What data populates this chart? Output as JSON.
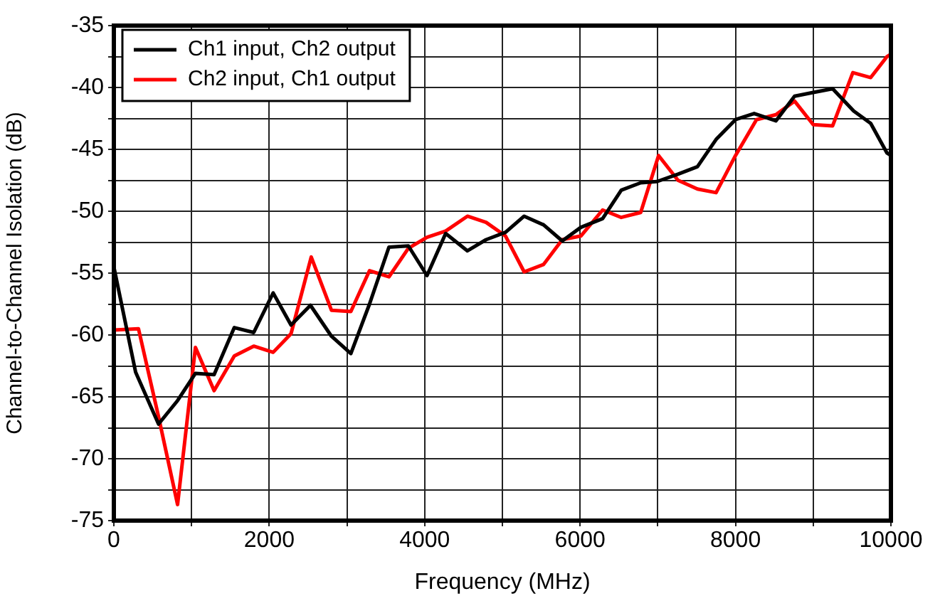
{
  "chart_data": {
    "type": "line",
    "xlabel": "Frequency (MHz)",
    "ylabel": "Channel-to-Channel Isolation (dB)",
    "xlim": [
      0,
      10000
    ],
    "xticks": [
      0,
      {
        "value": 1000,
        "label": null
      },
      2000,
      {
        "value": 3000,
        "label": null
      },
      4000,
      {
        "value": 5000,
        "label": null
      },
      6000,
      {
        "value": 7000,
        "label": null
      },
      8000,
      {
        "value": 9000,
        "label": null
      },
      10000
    ],
    "ylim": [
      -75,
      -35
    ],
    "yticks": [
      -75,
      {
        "value": -72.5,
        "label": null
      },
      -70,
      {
        "value": -67.5,
        "label": null
      },
      -65,
      {
        "value": -62.5,
        "label": null
      },
      -60,
      {
        "value": -57.5,
        "label": null
      },
      -55,
      {
        "value": -52.5,
        "label": null
      },
      -50,
      {
        "value": -47.5,
        "label": null
      },
      -45,
      {
        "value": -42.5,
        "label": null
      },
      -40,
      {
        "value": -37.5,
        "label": null
      },
      -35
    ],
    "grid": true,
    "legend": "top left",
    "marker": "none",
    "line_style": "solid",
    "series": [
      {
        "name": "Ch1 input, Ch2 output",
        "color": "#000000",
        "x": [
          0,
          280,
          575,
          820,
          1050,
          1290,
          1550,
          1800,
          2050,
          2280,
          2530,
          2800,
          3050,
          3290,
          3540,
          3790,
          4030,
          4270,
          4550,
          4790,
          5040,
          5280,
          5530,
          5770,
          6010,
          6290,
          6530,
          6780,
          6990,
          7260,
          7510,
          7750,
          8000,
          8240,
          8520,
          8760,
          9000,
          9250,
          9520,
          9740,
          9950,
          10000
        ],
        "values": [
          -54.5,
          -63.0,
          -67.2,
          -65.3,
          -63.1,
          -63.2,
          -59.4,
          -59.8,
          -56.6,
          -59.2,
          -57.6,
          -60.1,
          -61.5,
          -57.5,
          -52.9,
          -52.8,
          -55.2,
          -51.8,
          -53.2,
          -52.3,
          -51.7,
          -50.4,
          -51.1,
          -52.4,
          -51.3,
          -50.6,
          -48.3,
          -47.7,
          -47.6,
          -47.0,
          -46.4,
          -44.2,
          -42.6,
          -42.1,
          -42.7,
          -40.7,
          -40.4,
          -40.1,
          -41.9,
          -42.9,
          -45.3,
          -45.5
        ]
      },
      {
        "name": "Ch2 input, Ch1 output",
        "color": "#ff0000",
        "x": [
          0,
          317,
          575,
          820,
          1050,
          1290,
          1550,
          1800,
          2050,
          2280,
          2540,
          2800,
          3050,
          3290,
          3540,
          3790,
          4030,
          4270,
          4550,
          4790,
          5040,
          5280,
          5530,
          5770,
          6010,
          6290,
          6530,
          6780,
          7010,
          7260,
          7510,
          7750,
          8000,
          8270,
          8520,
          8760,
          9000,
          9250,
          9510,
          9740,
          9950,
          10000
        ],
        "values": [
          -59.6,
          -59.5,
          -66.6,
          -73.7,
          -61.0,
          -64.5,
          -61.7,
          -60.9,
          -61.4,
          -59.9,
          -53.7,
          -58.0,
          -58.1,
          -54.8,
          -55.3,
          -53.0,
          -52.1,
          -51.6,
          -50.4,
          -50.9,
          -52.0,
          -54.9,
          -54.3,
          -52.3,
          -52.0,
          -49.9,
          -50.5,
          -50.1,
          -45.5,
          -47.5,
          -48.2,
          -48.5,
          -45.5,
          -42.6,
          -42.2,
          -41.1,
          -43.0,
          -43.1,
          -38.8,
          -39.2,
          -37.5,
          -37.3
        ]
      }
    ]
  }
}
